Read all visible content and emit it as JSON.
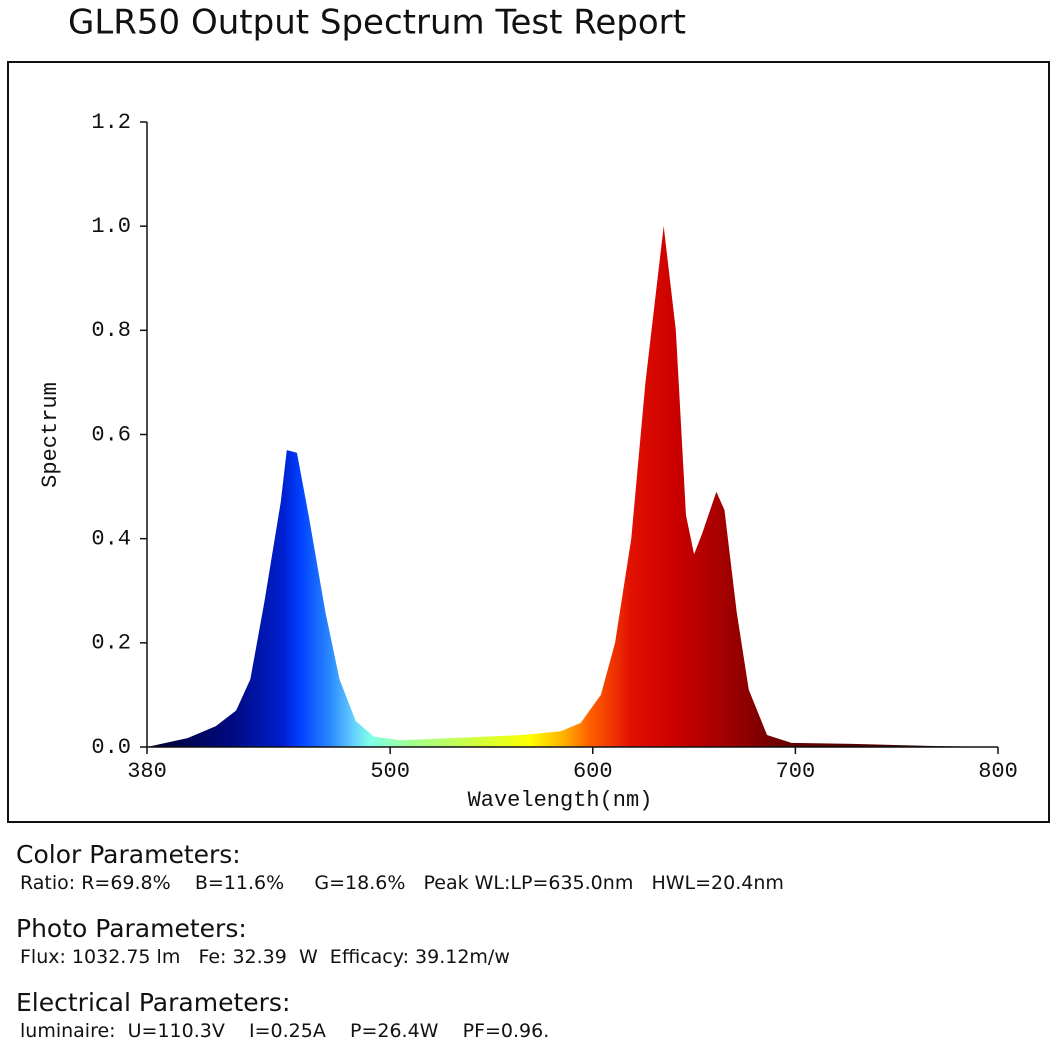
{
  "chart_data": {
    "type": "area",
    "title": "GLR50 Output Spectrum Test Report",
    "x_label": "Wavelength(nm)",
    "y_label": "Spectrum",
    "x": [
      380,
      400,
      414,
      424,
      431,
      438,
      446,
      449,
      454,
      460,
      468,
      475,
      483,
      492,
      505,
      530,
      565,
      584,
      594,
      604,
      611,
      619,
      626,
      635,
      641,
      646,
      650,
      654,
      661,
      665,
      671,
      677,
      686,
      698,
      728,
      768,
      800
    ],
    "y": [
      0,
      0.017,
      0.04,
      0.07,
      0.13,
      0.28,
      0.47,
      0.57,
      0.565,
      0.44,
      0.26,
      0.13,
      0.05,
      0.02,
      0.013,
      0.017,
      0.023,
      0.03,
      0.046,
      0.1,
      0.2,
      0.4,
      0.7,
      1.0,
      0.8,
      0.445,
      0.37,
      0.41,
      0.49,
      0.455,
      0.26,
      0.11,
      0.023,
      0.008,
      0.006,
      0.002,
      0
    ],
    "xlim": [
      380,
      800
    ],
    "xticks": [
      380,
      500,
      600,
      700,
      800
    ],
    "ylim": [
      0,
      1.2
    ],
    "yticks": [
      {
        "value": 0,
        "label": "0.0"
      },
      0.2,
      0.4,
      0.6,
      0.8,
      {
        "value": 1,
        "label": "1.0"
      },
      1.2
    ]
  },
  "parameters": [
    {
      "heading": "Color Parameters:",
      "lines": [
        "Ratio: R=69.8%    B=11.6%     G=18.6%   Peak WL:LP=635.0nm   HWL=20.4nm"
      ]
    },
    {
      "heading": "Photo Parameters:",
      "lines": [
        "Flux: 1032.75 lm   Fe: 32.39  W  Efficacy: 39.12m/w"
      ]
    },
    {
      "heading": "Electrical Parameters:",
      "lines": [
        "luminaire:  U=110.3V    I=0.25A    P=26.4W    PF=0.96."
      ]
    }
  ]
}
